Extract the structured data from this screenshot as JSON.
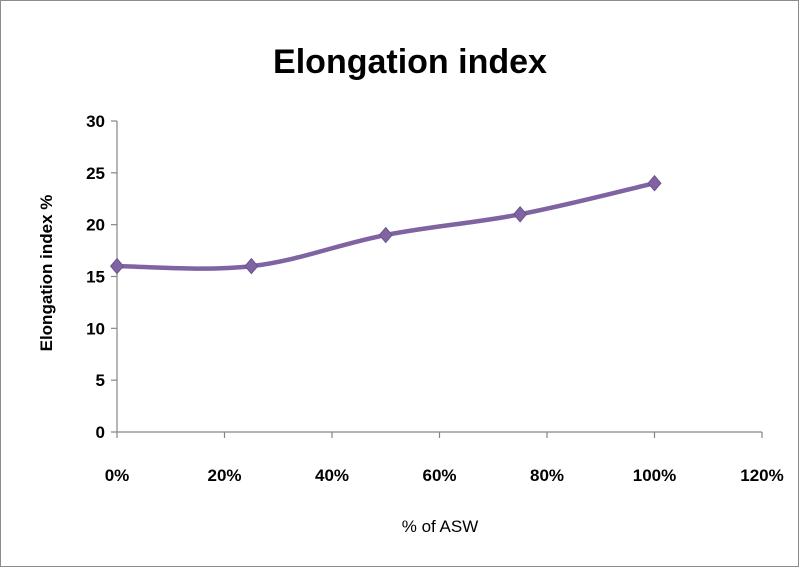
{
  "chart_data": {
    "type": "line",
    "title": "Elongation index",
    "xlabel": "% of ASW",
    "ylabel": "Elongation index  %",
    "x": [
      0,
      25,
      50,
      75,
      100
    ],
    "xlim": [
      0,
      120
    ],
    "ylim": [
      0,
      30
    ],
    "x_ticks": [
      "0%",
      "20%",
      "40%",
      "60%",
      "80%",
      "100%",
      "120%"
    ],
    "y_ticks": [
      "0",
      "5",
      "10",
      "15",
      "20",
      "25",
      "30"
    ],
    "series": [
      {
        "values": [
          16,
          16,
          19,
          21,
          24
        ],
        "color": "#8064a2",
        "marker": "diamond"
      }
    ],
    "grid": false,
    "legend": "none"
  }
}
